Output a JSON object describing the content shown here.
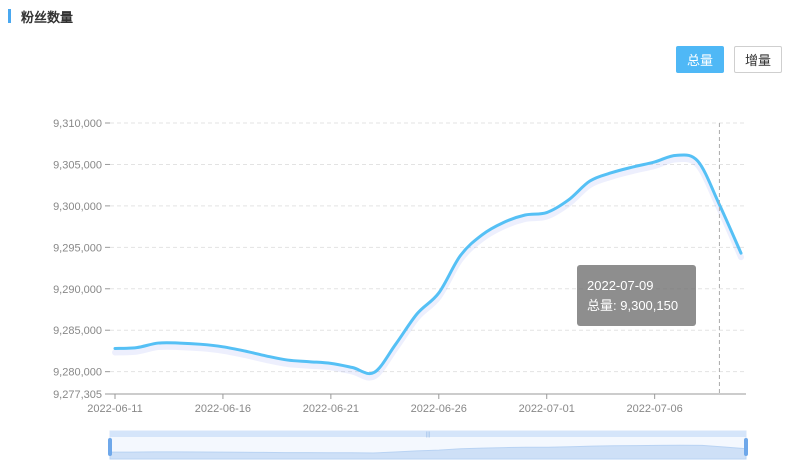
{
  "header": {
    "title": "粉丝数量"
  },
  "toggle": {
    "total_label": "总量",
    "increment_label": "增量",
    "active": "total"
  },
  "tooltip": {
    "date": "2022-07-09",
    "series_label": "总量",
    "value_text": "9,300,150"
  },
  "colors": {
    "line": "#55c0f5",
    "accent": "#4aa8f0",
    "button_active": "#4fb8f6",
    "tooltip_bg": "#6e6e6e"
  },
  "chart_data": {
    "type": "line",
    "ylim": [
      9277305,
      9310000
    ],
    "y_ticks": [
      9277305,
      9280000,
      9285000,
      9290000,
      9295000,
      9300000,
      9305000,
      9310000
    ],
    "y_tick_labels": [
      "9,277,305",
      "9,280,000",
      "9,285,000",
      "9,290,000",
      "9,295,000",
      "9,300,000",
      "9,305,000",
      "9,310,000"
    ],
    "x_tick_labels": [
      "2022-06-11",
      "2022-06-16",
      "2022-06-21",
      "2022-06-26",
      "2022-07-01",
      "2022-07-06"
    ],
    "grid": true,
    "series": [
      {
        "name": "总量",
        "x": [
          "2022-06-11",
          "2022-06-12",
          "2022-06-13",
          "2022-06-14",
          "2022-06-15",
          "2022-06-16",
          "2022-06-17",
          "2022-06-18",
          "2022-06-19",
          "2022-06-20",
          "2022-06-21",
          "2022-06-22",
          "2022-06-23",
          "2022-06-24",
          "2022-06-25",
          "2022-06-26",
          "2022-06-27",
          "2022-06-28",
          "2022-06-29",
          "2022-06-30",
          "2022-07-01",
          "2022-07-02",
          "2022-07-03",
          "2022-07-04",
          "2022-07-05",
          "2022-07-06",
          "2022-07-07",
          "2022-07-08",
          "2022-07-09",
          "2022-07-10"
        ],
        "values": [
          9282800,
          9282900,
          9283450,
          9283450,
          9283300,
          9283000,
          9282500,
          9281900,
          9281400,
          9281200,
          9281000,
          9280500,
          9279900,
          9283300,
          9287000,
          9289500,
          9294000,
          9296500,
          9298000,
          9298900,
          9299200,
          9300700,
          9303000,
          9304000,
          9304700,
          9305300,
          9306100,
          9305400,
          9300150,
          9294300
        ]
      }
    ],
    "highlight": {
      "x": "2022-07-09",
      "value": 9300150
    }
  }
}
